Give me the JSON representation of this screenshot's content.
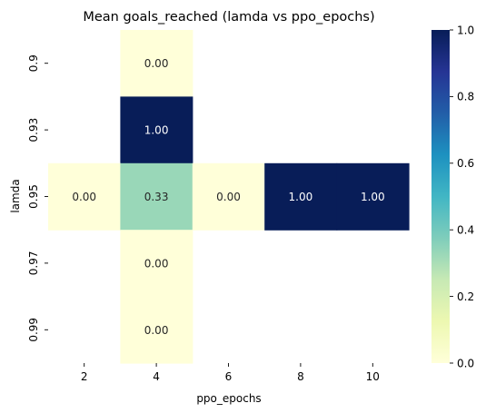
{
  "chart_data": {
    "type": "heatmap",
    "title": "Mean goals_reached (lamda vs ppo_epochs)",
    "xlabel": "ppo_epochs",
    "ylabel": "lamda",
    "x_categories": [
      "2",
      "4",
      "6",
      "8",
      "10"
    ],
    "y_categories": [
      "0.9",
      "0.93",
      "0.95",
      "0.97",
      "0.99"
    ],
    "cells": [
      {
        "x": "4",
        "y": "0.9",
        "value": 0.0,
        "label": "0.00"
      },
      {
        "x": "4",
        "y": "0.93",
        "value": 1.0,
        "label": "1.00"
      },
      {
        "x": "2",
        "y": "0.95",
        "value": 0.0,
        "label": "0.00"
      },
      {
        "x": "4",
        "y": "0.95",
        "value": 0.33,
        "label": "0.33"
      },
      {
        "x": "6",
        "y": "0.95",
        "value": 0.0,
        "label": "0.00"
      },
      {
        "x": "8",
        "y": "0.95",
        "value": 1.0,
        "label": "1.00"
      },
      {
        "x": "10",
        "y": "0.95",
        "value": 1.0,
        "label": "1.00"
      },
      {
        "x": "4",
        "y": "0.97",
        "value": 0.0,
        "label": "0.00"
      },
      {
        "x": "4",
        "y": "0.99",
        "value": 0.0,
        "label": "0.00"
      }
    ],
    "colorbar": {
      "colormap": "YlGnBu",
      "range": [
        0.0,
        1.0
      ],
      "ticks": [
        "0.0",
        "0.2",
        "0.4",
        "0.6",
        "0.8",
        "1.0"
      ]
    },
    "grid": false
  }
}
